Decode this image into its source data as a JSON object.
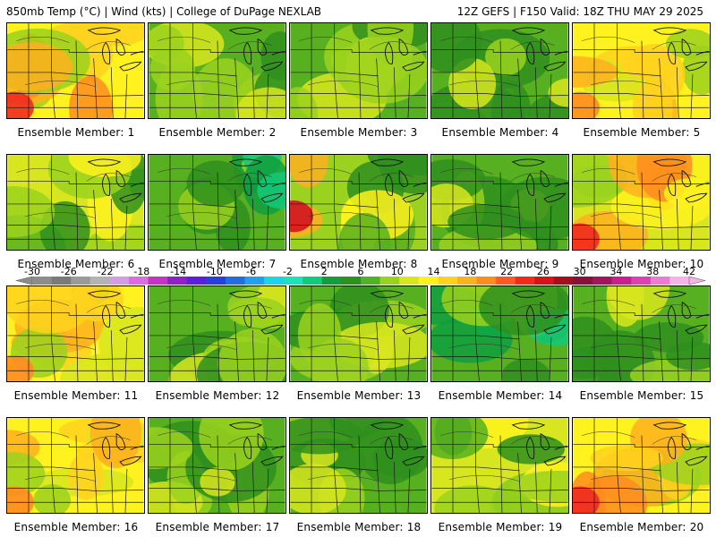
{
  "header": {
    "left": "850mb Temp (°C) | Wind (kts) | College of DuPage NEXLAB",
    "right": "12Z GEFS | F150 Valid: 18Z THU MAY 29 2025"
  },
  "members": [
    {
      "label": "Ensemble Member: 1",
      "tone": "warm-southwest"
    },
    {
      "label": "Ensemble Member: 2",
      "tone": "green-mid"
    },
    {
      "label": "Ensemble Member: 3",
      "tone": "green-mid"
    },
    {
      "label": "Ensemble Member: 4",
      "tone": "green-deep"
    },
    {
      "label": "Ensemble Member: 5",
      "tone": "yellow-warm"
    },
    {
      "label": "Ensemble Member: 6",
      "tone": "yellow-green"
    },
    {
      "label": "Ensemble Member: 7",
      "tone": "green-cool"
    },
    {
      "label": "Ensemble Member: 8",
      "tone": "hot-west"
    },
    {
      "label": "Ensemble Member: 9",
      "tone": "green-deep"
    },
    {
      "label": "Ensemble Member: 10",
      "tone": "hot-southwest"
    },
    {
      "label": "Ensemble Member: 11",
      "tone": "yellow-warm"
    },
    {
      "label": "Ensemble Member: 12",
      "tone": "green-mid"
    },
    {
      "label": "Ensemble Member: 13",
      "tone": "green-mid"
    },
    {
      "label": "Ensemble Member: 14",
      "tone": "green-cool"
    },
    {
      "label": "Ensemble Member: 15",
      "tone": "green-deep"
    },
    {
      "label": "Ensemble Member: 16",
      "tone": "yellow-warm"
    },
    {
      "label": "Ensemble Member: 17",
      "tone": "green-mid"
    },
    {
      "label": "Ensemble Member: 18",
      "tone": "green-deep"
    },
    {
      "label": "Ensemble Member: 19",
      "tone": "yellow-green"
    },
    {
      "label": "Ensemble Member: 20",
      "tone": "warm-southwest"
    }
  ],
  "colorbar": {
    "unit": "°C",
    "labels": [
      "-30",
      "-26",
      "-22",
      "-18",
      "-14",
      "-10",
      "-6",
      "-2",
      "2",
      "6",
      "10",
      "14",
      "18",
      "22",
      "26",
      "30",
      "34",
      "38",
      "42"
    ],
    "colors": [
      "#8c8c8c",
      "#7a7a7a",
      "#9a9a9a",
      "#b3b3b3",
      "#d39ee0",
      "#e06be0",
      "#c92fc9",
      "#8f1fc9",
      "#5a1fd6",
      "#2a3fd6",
      "#1f6fe0",
      "#1fa0f0",
      "#1fd2e6",
      "#1fe0b8",
      "#13c97a",
      "#0f9f3f",
      "#2f8f1f",
      "#57b01f",
      "#9bd21f",
      "#d8e61f",
      "#fff21f",
      "#ffd21f",
      "#ffb01f",
      "#ff8c1f",
      "#ff5a1f",
      "#f02a1f",
      "#d2141f",
      "#a30f1f",
      "#8a0f3a",
      "#a3145a",
      "#c91f8a",
      "#e03fb0",
      "#f07ad2",
      "#f5b3e6"
    ],
    "range": [
      -30,
      42
    ],
    "step": 2
  }
}
